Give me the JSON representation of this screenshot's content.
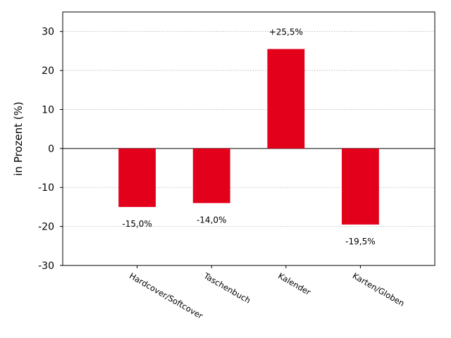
{
  "chart_data": {
    "type": "bar",
    "categories": [
      "Hardcover/Softcover",
      "Taschenbuch",
      "Kalender",
      "Karten/Globen"
    ],
    "values": [
      -15.0,
      -14.0,
      25.5,
      -19.5
    ],
    "data_labels": [
      "-15,0%",
      "-14,0%",
      "+25,5%",
      "-19,5%"
    ],
    "ylabel": "in Prozent (%)",
    "xlabel": "",
    "title": "",
    "ylim": [
      -30,
      35
    ],
    "yticks": [
      30,
      20,
      10,
      0,
      -10,
      -20,
      -30
    ],
    "ytick_labels": [
      "30",
      "20",
      "10",
      "0",
      "-10",
      "-20",
      "-30"
    ],
    "grid": "horizontal dotted",
    "bar_color": "#e2001a",
    "legend": "none"
  }
}
